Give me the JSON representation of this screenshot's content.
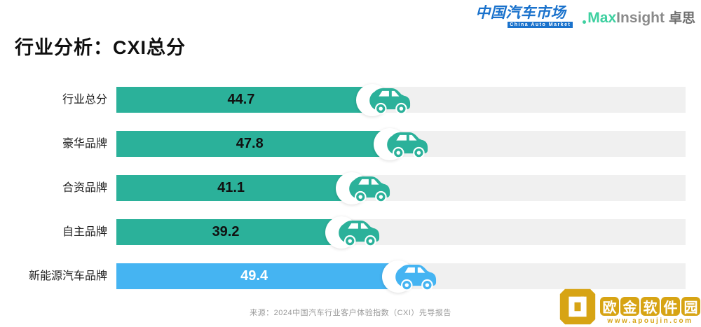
{
  "header": {
    "cam_logo": {
      "text": "中国汽车市场",
      "subtext": "China Auto Market"
    },
    "maxinsight_logo": {
      "max": "Max",
      "insight": "Insight",
      "cn": "卓思"
    }
  },
  "title": "行业分析：CXI总分",
  "chart_data": {
    "type": "bar",
    "orientation": "horizontal",
    "title": "行业分析：CXI总分",
    "categories": [
      "行业总分",
      "豪华品牌",
      "合资品牌",
      "自主品牌",
      "新能源汽车品牌"
    ],
    "values": [
      44.7,
      47.8,
      41.1,
      39.2,
      49.4
    ],
    "bar_colors": [
      "#2bb19a",
      "#2bb19a",
      "#2bb19a",
      "#2bb19a",
      "#45b4f2"
    ],
    "value_label_colors": [
      "#111111",
      "#111111",
      "#111111",
      "#111111",
      "#ffffff"
    ],
    "track_color": "#f0f0f0",
    "xlim": [
      0,
      102
    ],
    "value_labels": "inside-center",
    "bar_end_icon": "car-icon",
    "grid": false,
    "legend": false
  },
  "footer": {
    "source": "来源：2024中国汽车行业客户体验指数（CXI）先导报告"
  },
  "watermark": {
    "site_name_chars": [
      "欧",
      "金",
      "软",
      "件",
      "园"
    ],
    "url": "www.apoujin.com",
    "color": "#d7a414"
  }
}
